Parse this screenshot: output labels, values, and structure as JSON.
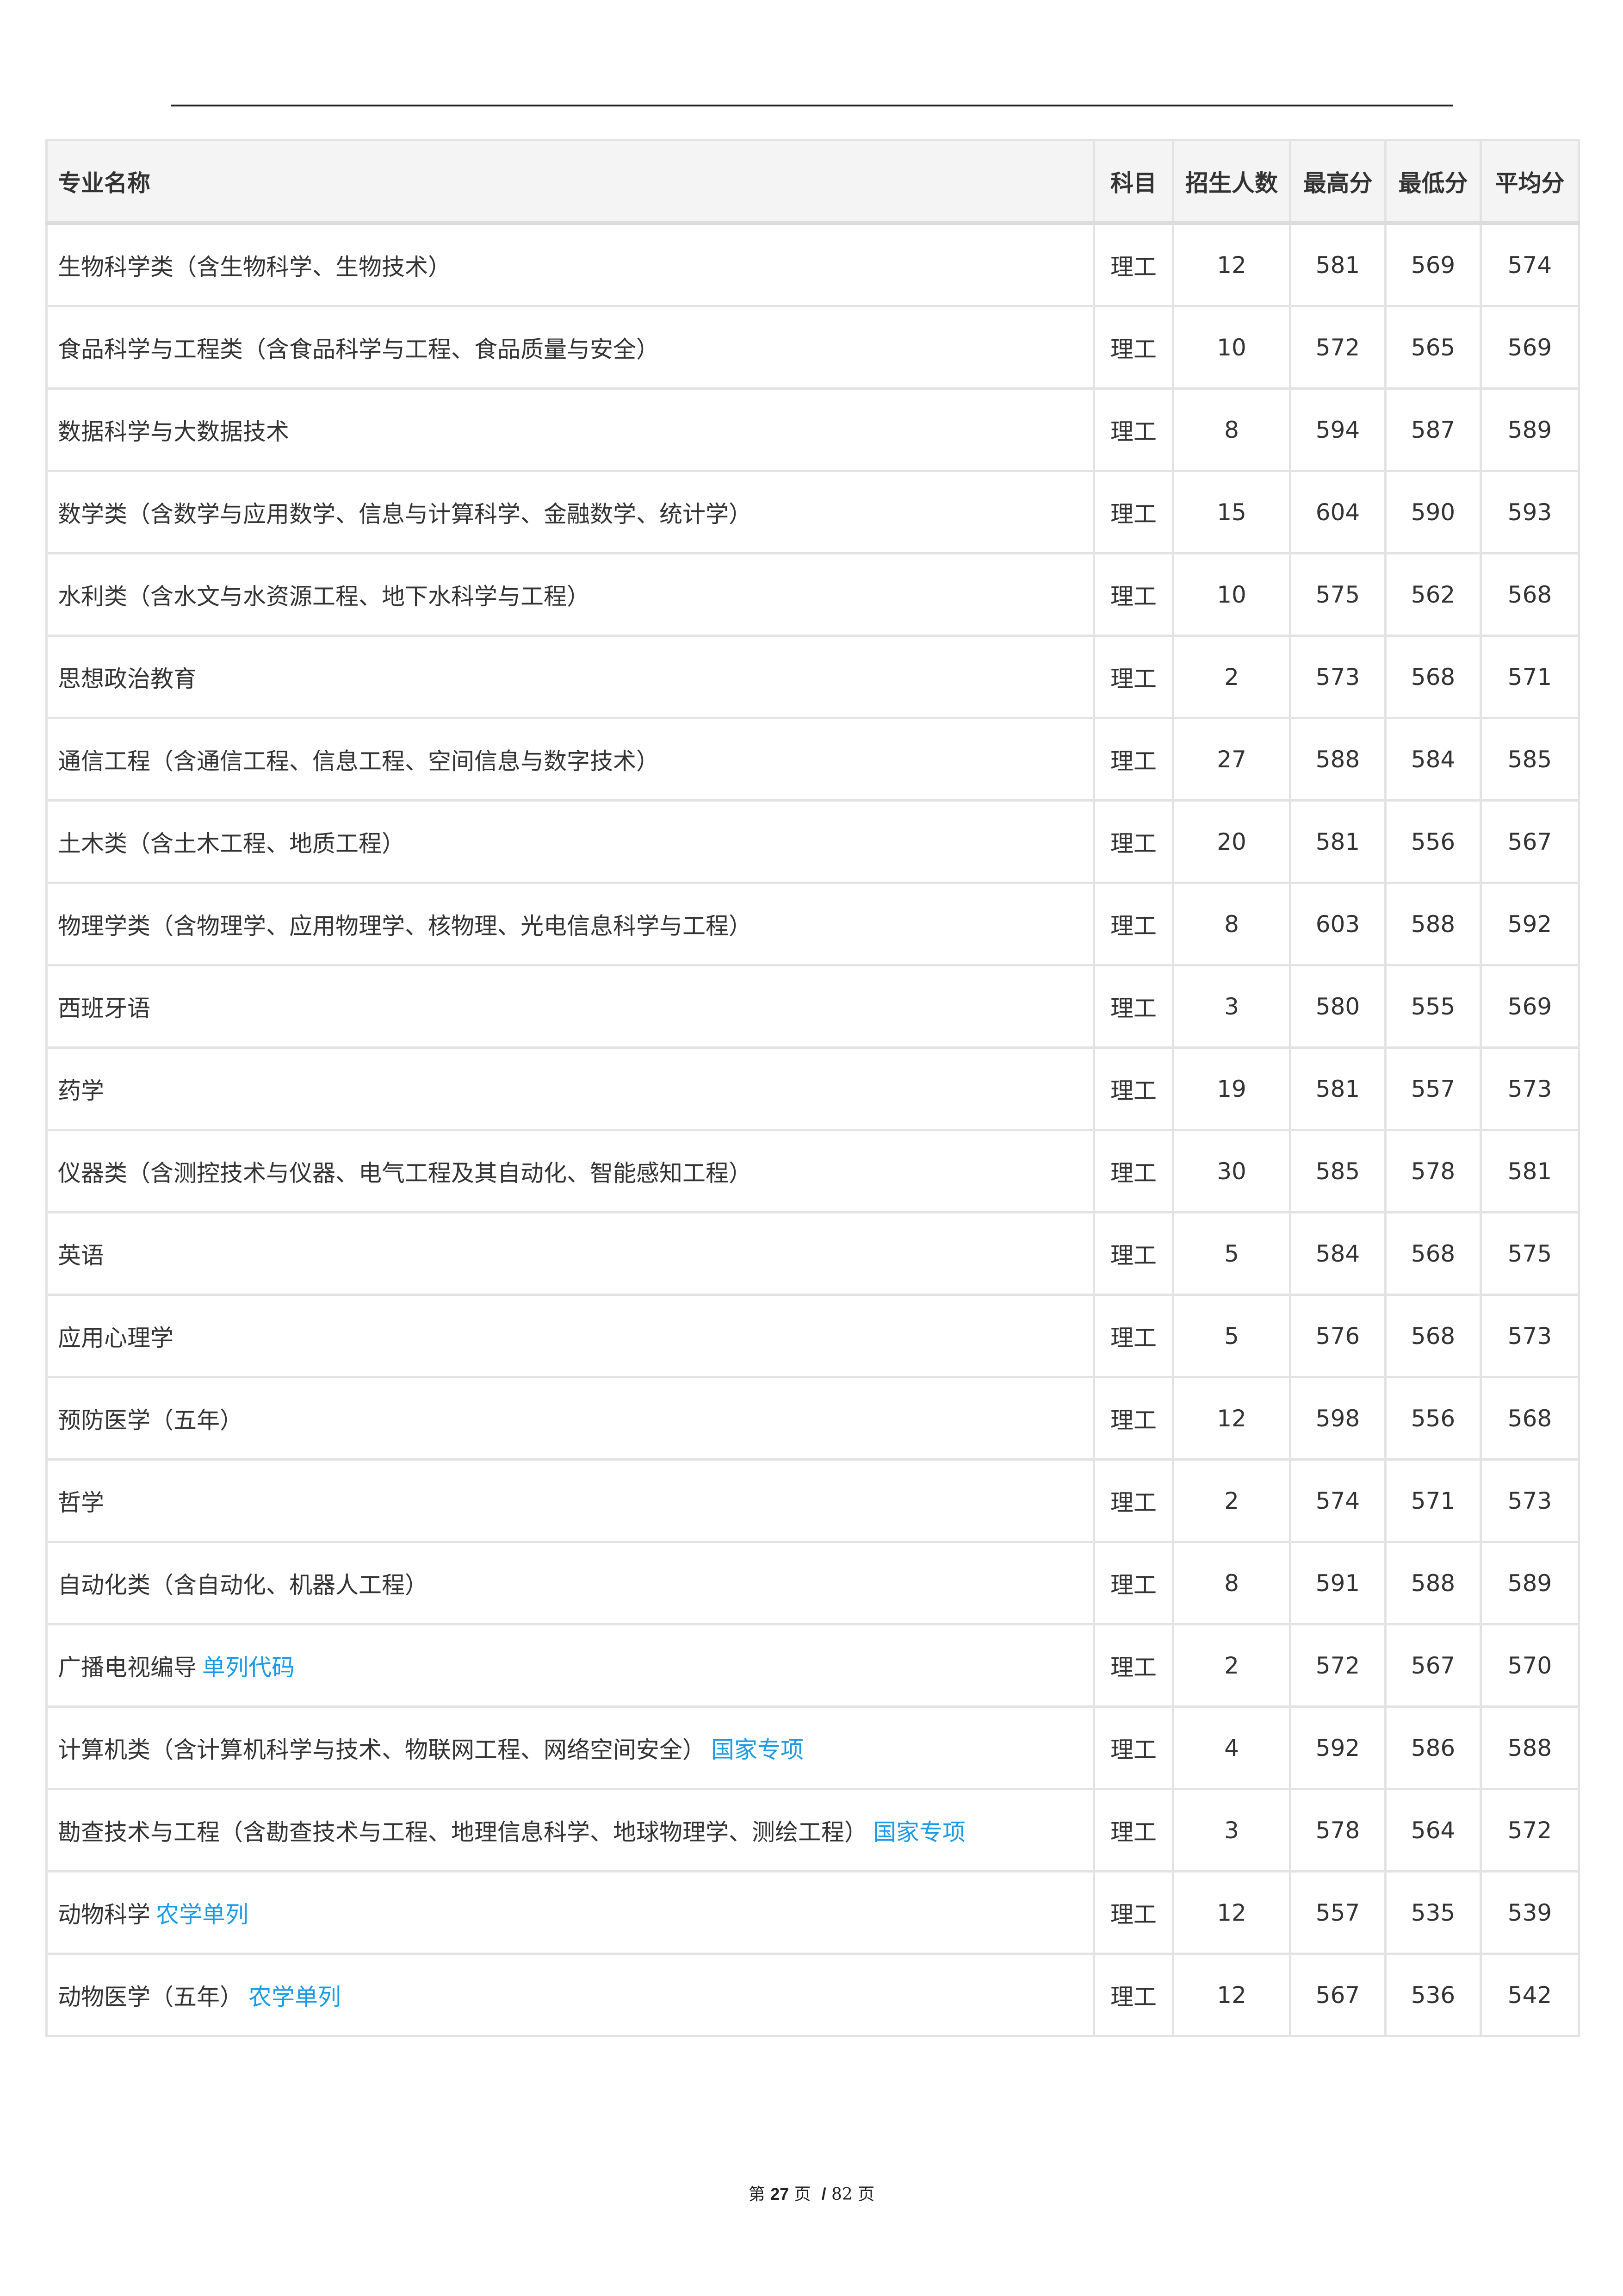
{
  "table": {
    "headers": [
      "专业名称",
      "科目",
      "招生人数",
      "最高分",
      "最低分",
      "平均分"
    ],
    "tag_color": "#1a9be8",
    "rows": [
      {
        "name": "生物科学类（含生物科学、生物技术）",
        "tag": "",
        "subject": "理工",
        "count": "12",
        "max": "581",
        "min": "569",
        "avg": "574"
      },
      {
        "name": "食品科学与工程类（含食品科学与工程、食品质量与安全）",
        "tag": "",
        "subject": "理工",
        "count": "10",
        "max": "572",
        "min": "565",
        "avg": "569"
      },
      {
        "name": "数据科学与大数据技术",
        "tag": "",
        "subject": "理工",
        "count": "8",
        "max": "594",
        "min": "587",
        "avg": "589"
      },
      {
        "name": "数学类（含数学与应用数学、信息与计算科学、金融数学、统计学）",
        "tag": "",
        "subject": "理工",
        "count": "15",
        "max": "604",
        "min": "590",
        "avg": "593"
      },
      {
        "name": "水利类（含水文与水资源工程、地下水科学与工程）",
        "tag": "",
        "subject": "理工",
        "count": "10",
        "max": "575",
        "min": "562",
        "avg": "568"
      },
      {
        "name": "思想政治教育",
        "tag": "",
        "subject": "理工",
        "count": "2",
        "max": "573",
        "min": "568",
        "avg": "571"
      },
      {
        "name": "通信工程（含通信工程、信息工程、空间信息与数字技术）",
        "tag": "",
        "subject": "理工",
        "count": "27",
        "max": "588",
        "min": "584",
        "avg": "585"
      },
      {
        "name": "土木类（含土木工程、地质工程）",
        "tag": "",
        "subject": "理工",
        "count": "20",
        "max": "581",
        "min": "556",
        "avg": "567"
      },
      {
        "name": "物理学类（含物理学、应用物理学、核物理、光电信息科学与工程）",
        "tag": "",
        "subject": "理工",
        "count": "8",
        "max": "603",
        "min": "588",
        "avg": "592"
      },
      {
        "name": "西班牙语",
        "tag": "",
        "subject": "理工",
        "count": "3",
        "max": "580",
        "min": "555",
        "avg": "569"
      },
      {
        "name": "药学",
        "tag": "",
        "subject": "理工",
        "count": "19",
        "max": "581",
        "min": "557",
        "avg": "573"
      },
      {
        "name": "仪器类（含测控技术与仪器、电气工程及其自动化、智能感知工程）",
        "tag": "",
        "subject": "理工",
        "count": "30",
        "max": "585",
        "min": "578",
        "avg": "581"
      },
      {
        "name": "英语",
        "tag": "",
        "subject": "理工",
        "count": "5",
        "max": "584",
        "min": "568",
        "avg": "575"
      },
      {
        "name": "应用心理学",
        "tag": "",
        "subject": "理工",
        "count": "5",
        "max": "576",
        "min": "568",
        "avg": "573"
      },
      {
        "name": "预防医学（五年）",
        "tag": "",
        "subject": "理工",
        "count": "12",
        "max": "598",
        "min": "556",
        "avg": "568"
      },
      {
        "name": "哲学",
        "tag": "",
        "subject": "理工",
        "count": "2",
        "max": "574",
        "min": "571",
        "avg": "573"
      },
      {
        "name": "自动化类（含自动化、机器人工程）",
        "tag": "",
        "subject": "理工",
        "count": "8",
        "max": "591",
        "min": "588",
        "avg": "589"
      },
      {
        "name": "广播电视编导",
        "tag": "单列代码",
        "subject": "理工",
        "count": "2",
        "max": "572",
        "min": "567",
        "avg": "570"
      },
      {
        "name": "计算机类（含计算机科学与技术、物联网工程、网络空间安全）",
        "tag": "国家专项",
        "subject": "理工",
        "count": "4",
        "max": "592",
        "min": "586",
        "avg": "588"
      },
      {
        "name": "勘查技术与工程（含勘查技术与工程、地理信息科学、地球物理学、测绘工程）",
        "tag": "国家专项",
        "subject": "理工",
        "count": "3",
        "max": "578",
        "min": "564",
        "avg": "572"
      },
      {
        "name": "动物科学",
        "tag": "农学单列",
        "subject": "理工",
        "count": "12",
        "max": "557",
        "min": "535",
        "avg": "539"
      },
      {
        "name": "动物医学（五年）",
        "tag": "农学单列",
        "subject": "理工",
        "count": "12",
        "max": "567",
        "min": "536",
        "avg": "542"
      }
    ]
  },
  "footer": {
    "prefix": "第",
    "current": "27",
    "mid": "页",
    "sep": "/",
    "total": "82",
    "suffix": "页"
  }
}
